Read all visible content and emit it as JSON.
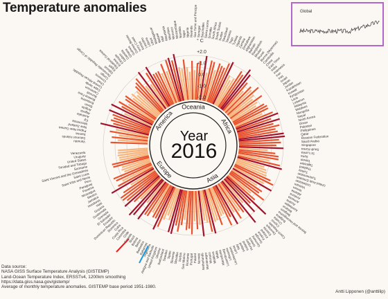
{
  "title": "Temperature anomalies",
  "center": {
    "label": "Year",
    "year": "2016"
  },
  "unit": "° C",
  "inset": {
    "label": "Global"
  },
  "source_lines": [
    "Data source:",
    "NASA GISS Surface Temperature Analysis (GISTEMP)",
    "Land-Ocean Temperature Index, ERSSTv4, 1200km smoothing",
    "https://data.giss.nasa.gov/gistemp/",
    "Average of monthly temperature anomalies. GISTEMP base period 1951-1980."
  ],
  "credit": "Antti Lipponen (@anttilip)",
  "colors": {
    "dark": "#a3122a",
    "mid": "#e8532d",
    "light": "#f7b47c",
    "ring": "#cfc8c0",
    "highlight_red": "#e02020",
    "highlight_blue": "#1a9be0",
    "inset_line": "#444444"
  },
  "chart_data": {
    "type": "radial-bar",
    "radial_axis": {
      "unit": "° C",
      "ticks": [
        "+2.0",
        "+1.0",
        "0.0",
        "-1.0",
        "-2.0"
      ],
      "range": [
        -2.0,
        2.0
      ]
    },
    "continents": [
      "Oceania",
      "Africa",
      "Asia",
      "Europe",
      "America"
    ],
    "country_labels": [
      "Vanuatu",
      "Solomon Islands",
      "Samoa",
      "Papua New Guinea",
      "New Zealand",
      "Micronesia",
      "Fiji",
      "Australia",
      "Algeria",
      "Angola",
      "Benin",
      "Botswana",
      "Burkina Faso",
      "Burundi",
      "Cameroon",
      "Cape Verde",
      "Central African Republic",
      "Chad",
      "Comoros",
      "Congo",
      "Democratic Republic of Congo",
      "Djibouti",
      "Egypt",
      "Equatorial Guinea",
      "Eritrea",
      "Ethiopia",
      "Gabon",
      "Gambia",
      "Ghana",
      "Guinea",
      "Guinea-Bissau",
      "Ivory Coast",
      "Kenya",
      "Lesotho",
      "Liberia",
      "Libya",
      "Madagascar",
      "Malawi",
      "Mali",
      "Mauritania",
      "Mauritius",
      "Morocco",
      "Mozambique",
      "Namibia",
      "Niger",
      "Nigeria",
      "Rwanda",
      "Sao Tome and Principe",
      "Senegal",
      "Seychelles",
      "Sierra Leone",
      "Somalia",
      "South Africa",
      "South Sudan",
      "Sudan",
      "Swaziland",
      "Tanzania",
      "Togo",
      "Tunisia",
      "Uganda",
      "Zambia",
      "Zimbabwe",
      "Afghanistan",
      "Bahrain",
      "Bangladesh",
      "Bhutan",
      "Brunei",
      "Burma (Myanmar)",
      "Cambodia",
      "China",
      "East Timor",
      "India",
      "Indonesia",
      "Iran",
      "Iraq",
      "Israel",
      "Japan",
      "Jordan",
      "Kazakhstan",
      "Kuwait",
      "Kyrgyzstan",
      "Laos",
      "Lebanon",
      "Malaysia",
      "Maldives",
      "Mongolia",
      "Nepal",
      "North Korea",
      "Oman",
      "Pakistan",
      "Philippines",
      "Qatar",
      "Russian Federation",
      "Saudi Arabia",
      "Singapore",
      "South Korea",
      "Sri Lanka",
      "Syria",
      "Taiwan",
      "Tajikistan",
      "Thailand",
      "Turkey",
      "Turkmenistan",
      "United Arab Emirates",
      "Uzbekistan",
      "Vietnam",
      "Yemen",
      "Albania",
      "Andorra",
      "Armenia",
      "Austria",
      "Azerbaijan",
      "Belarus",
      "Belgium",
      "Bosnia and Herzegovina",
      "Bulgaria",
      "Croatia",
      "Cyprus",
      "Czech Republic",
      "Denmark",
      "Estonia",
      "Finland",
      "France",
      "Georgia",
      "Germany",
      "Greece",
      "Hungary",
      "Iceland",
      "Ireland",
      "Italy",
      "Latvia",
      "Liechtenstein",
      "Lithuania",
      "Luxembourg",
      "Macedonia",
      "Malta",
      "Moldova",
      "Monaco",
      "Montenegro",
      "Netherlands",
      "Norway",
      "Poland",
      "Portugal",
      "Romania",
      "San Marino",
      "Serbia",
      "Slovakia",
      "Slovenia",
      "Spain",
      "Sweden",
      "Switzerland",
      "Ukraine",
      "United Kingdom",
      "Antigua and Barbuda",
      "Argentina",
      "Bahamas",
      "Barbados",
      "Belize",
      "Bolivia",
      "Brazil",
      "Canada",
      "Chile",
      "Colombia",
      "Costa Rica",
      "Cuba",
      "Dominica",
      "Dominican Republic",
      "Ecuador",
      "El Salvador",
      "Grenada",
      "Guatemala",
      "Guyana",
      "Haiti",
      "Honduras",
      "Jamaica",
      "Mexico",
      "Nicaragua",
      "Panama",
      "Paraguay",
      "Peru",
      "Saint Kitts and Nevis",
      "Saint Lucia",
      "Saint Vincent and the Grenadines",
      "Suriname",
      "Trinidad and Tobago",
      "United States",
      "Uruguay",
      "Venezuela"
    ]
  }
}
